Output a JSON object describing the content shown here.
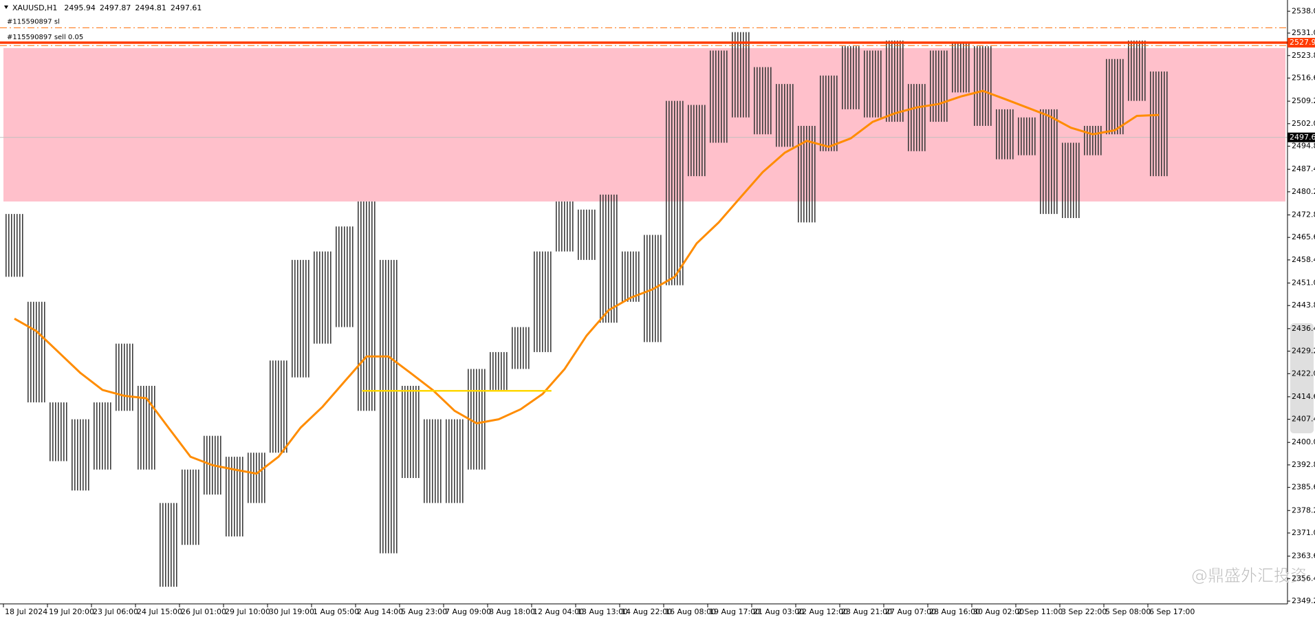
{
  "chart_data": {
    "type": "range",
    "symbol": "XAUUSD,H1",
    "quote": [
      2495.94,
      2497.87,
      2494.81,
      2497.61
    ],
    "watermark": "@鼎盛外汇投资",
    "categories": [
      "18 Jul 2024",
      null,
      "19 Jul 20:00",
      null,
      "23 Jul 06:00",
      null,
      "24 Jul 15:00",
      null,
      "26 Jul 01:00",
      null,
      "29 Jul 10:00",
      null,
      "30 Jul 19:00",
      null,
      "1 Aug 05:00",
      null,
      "2 Aug 14:00",
      null,
      "5 Aug 23:00",
      null,
      "7 Aug 09:00",
      null,
      "8 Aug 18:00",
      null,
      "12 Aug 04:00",
      null,
      "13 Aug 13:00",
      null,
      "14 Aug 22:00",
      null,
      "16 Aug 08:00",
      null,
      "19 Aug 17:00",
      null,
      "21 Aug 03:00",
      null,
      "22 Aug 12:00",
      null,
      "23 Aug 21:00",
      null,
      "27 Aug 07:00",
      null,
      "28 Aug 16:00",
      null,
      "30 Aug 02:00",
      null,
      "2 Sep 11:00",
      null,
      "3 Sep 22:00",
      null,
      "5 Sep 08:00",
      null,
      "6 Sep 17:00"
    ],
    "series": [
      {
        "name": "XAUUSD,H1",
        "color": "#5a5a5a",
        "high": [
          2473.1,
          2445.0,
          2412.8,
          2407.4,
          2412.8,
          2431.6,
          2418.1,
          2380.6,
          2391.3,
          2402.1,
          2395.4,
          2396.7,
          2426.2,
          2458.4,
          2461.1,
          2469.1,
          2477.1,
          2458.4,
          2418.1,
          2407.4,
          2407.4,
          2423.5,
          2428.9,
          2436.9,
          2461.1,
          2477.1,
          2474.5,
          2479.3,
          2461.1,
          2466.4,
          2509.3,
          2508.0,
          2525.4,
          2531.3,
          2520.1,
          2514.7,
          2501.3,
          2517.4,
          2526.8,
          2525.4,
          2528.6,
          2514.7,
          2525.4,
          2527.6,
          2526.8,
          2506.6,
          2504.0,
          2506.6,
          2495.9,
          2501.3,
          2522.7,
          2528.6,
          2518.7
        ],
        "low": [
          2453.0,
          2412.8,
          2394.0,
          2384.6,
          2391.3,
          2410.1,
          2391.3,
          2353.8,
          2367.2,
          2383.3,
          2369.9,
          2380.6,
          2396.7,
          2420.8,
          2431.6,
          2436.9,
          2410.1,
          2364.5,
          2388.6,
          2380.6,
          2380.6,
          2391.3,
          2416.8,
          2423.5,
          2428.9,
          2461.1,
          2458.4,
          2438.3,
          2445.0,
          2432.1,
          2450.3,
          2485.2,
          2495.9,
          2504.0,
          2498.6,
          2494.6,
          2470.4,
          2493.2,
          2506.6,
          2504.0,
          2502.6,
          2493.2,
          2502.6,
          2512.0,
          2501.3,
          2490.6,
          2491.9,
          2473.1,
          2471.8,
          2491.9,
          2498.6,
          2509.3,
          2485.2
        ]
      },
      {
        "color": "#ff8c00",
        "values": [
          2439.6,
          2435.6,
          2428.9,
          2422.2,
          2416.8,
          2414.9,
          2414.1,
          2404.7,
          2395.4,
          2392.7,
          2391.3,
          2390.0,
          2395.4,
          2404.7,
          2411.4,
          2419.5,
          2427.5,
          2427.5,
          2422.2,
          2416.8,
          2410.1,
          2406.1,
          2407.4,
          2410.6,
          2415.5,
          2423.5,
          2434.2,
          2442.3,
          2446.3,
          2449.0,
          2453.0,
          2463.7,
          2470.4,
          2478.5,
          2486.5,
          2492.7,
          2496.5,
          2494.6,
          2497.3,
          2502.6,
          2505.3,
          2507.2,
          2508.3,
          2510.7,
          2512.5,
          2509.9,
          2507.2,
          2504.5,
          2500.7,
          2498.6,
          2499.9,
          2504.5,
          2504.8
        ]
      }
    ],
    "ylim": [
      2349.2,
      2540.7
    ],
    "yticks": [
      {
        "value": 2538,
        "label": "2538.00"
      },
      {
        "value": 2531,
        "label": "2531.00"
      },
      {
        "value": 2523.8,
        "label": "2523.80"
      },
      {
        "value": 2516.6,
        "label": "2516.60"
      },
      {
        "value": 2509.2,
        "label": "2509.20"
      },
      {
        "value": 2502,
        "label": "2502.00"
      },
      {
        "value": 2494.8,
        "label": "2494.80"
      },
      {
        "value": 2487.4,
        "label": "2487.40"
      },
      {
        "value": 2480.2,
        "label": "2480.20"
      },
      {
        "value": 2472.8,
        "label": "2472.80"
      },
      {
        "value": 2465.6,
        "label": "2465.60"
      },
      {
        "value": 2458.4,
        "label": "2458.40"
      },
      {
        "value": 2451,
        "label": "2451.00"
      },
      {
        "value": 2443.8,
        "label": "2443.80"
      },
      {
        "value": 2436.4,
        "label": "2436.40"
      },
      {
        "value": 2429.2,
        "label": "2429.20"
      },
      {
        "value": 2422,
        "label": "2422.00"
      },
      {
        "value": 2414.6,
        "label": "2414.60"
      },
      {
        "value": 2407.4,
        "label": "2407.40"
      },
      {
        "value": 2400,
        "label": "2400.00"
      },
      {
        "value": 2392.8,
        "label": "2392.80"
      },
      {
        "value": 2385.6,
        "label": "2385.60"
      },
      {
        "value": 2378.2,
        "label": "2378.20"
      },
      {
        "value": 2371,
        "label": "2371.00"
      },
      {
        "value": 2363.6,
        "label": "2363.60"
      },
      {
        "value": 2356.4,
        "label": "2356.40"
      },
      {
        "value": 2349.2,
        "label": "2349.20"
      }
    ],
    "zone": {
      "ylim": [
        2477.1,
        2526.2
      ],
      "color": "#ffc0cb"
    },
    "support": {
      "value": 2416.5,
      "color": "#ffd700"
    },
    "levels": [
      {
        "label": "#115590897 sl",
        "value": 2532.7,
        "color": "#ff6a00",
        "style": "dashdot"
      },
      {
        "label": "#115590897 sell 0.05",
        "value": 2527.92,
        "color": "#ff3b00",
        "style": "solid"
      },
      {
        "value": 2527.0,
        "color": "#ff6a00",
        "style": "dashdot"
      }
    ],
    "bid": 2497.61,
    "grid": false
  }
}
